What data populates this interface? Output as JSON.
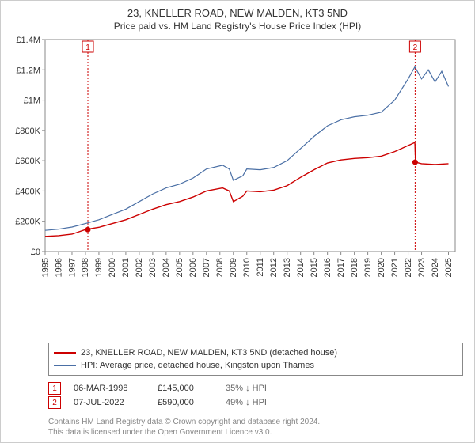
{
  "title_line1": "23, KNELLER ROAD, NEW MALDEN, KT3 5ND",
  "title_line2": "Price paid vs. HM Land Registry's House Price Index (HPI)",
  "chart": {
    "type": "line",
    "background_color": "#ffffff",
    "grid_on": false,
    "plot_border_color": "#888888",
    "x": {
      "min": 1995,
      "max": 2025.5,
      "ticks": [
        1995,
        1996,
        1997,
        1998,
        1999,
        2000,
        2001,
        2002,
        2003,
        2004,
        2005,
        2006,
        2007,
        2008,
        2009,
        2010,
        2011,
        2012,
        2013,
        2014,
        2015,
        2016,
        2017,
        2018,
        2019,
        2020,
        2021,
        2022,
        2023,
        2024,
        2025
      ],
      "label_fontsize": 11,
      "label_rotation": -90
    },
    "y": {
      "min": 0,
      "max": 1400000,
      "ticks": [
        0,
        200000,
        400000,
        600000,
        800000,
        1000000,
        1200000,
        1400000
      ],
      "tick_labels": [
        "£0",
        "£200K",
        "£400K",
        "£600K",
        "£800K",
        "£1M",
        "£1.2M",
        "£1.4M"
      ],
      "label_fontsize": 11
    },
    "series": [
      {
        "name": "property",
        "color": "#cc0000",
        "line_width": 1.4,
        "points": [
          [
            1995,
            100000
          ],
          [
            1996,
            105000
          ],
          [
            1997,
            115000
          ],
          [
            1998,
            145000
          ],
          [
            1999,
            160000
          ],
          [
            2000,
            185000
          ],
          [
            2001,
            210000
          ],
          [
            2002,
            245000
          ],
          [
            2003,
            280000
          ],
          [
            2004,
            310000
          ],
          [
            2005,
            330000
          ],
          [
            2006,
            360000
          ],
          [
            2007,
            400000
          ],
          [
            2008.2,
            420000
          ],
          [
            2008.7,
            400000
          ],
          [
            2009,
            330000
          ],
          [
            2009.7,
            365000
          ],
          [
            2010,
            400000
          ],
          [
            2011,
            395000
          ],
          [
            2012,
            405000
          ],
          [
            2013,
            435000
          ],
          [
            2014,
            490000
          ],
          [
            2015,
            540000
          ],
          [
            2016,
            585000
          ],
          [
            2017,
            605000
          ],
          [
            2018,
            615000
          ],
          [
            2019,
            620000
          ],
          [
            2020,
            630000
          ],
          [
            2021,
            660000
          ],
          [
            2022,
            700000
          ],
          [
            2022.5,
            720000
          ],
          [
            2022.55,
            590000
          ],
          [
            2023,
            580000
          ],
          [
            2024,
            575000
          ],
          [
            2025,
            580000
          ]
        ]
      },
      {
        "name": "hpi",
        "color": "#4a6fa5",
        "line_width": 1.2,
        "points": [
          [
            1995,
            140000
          ],
          [
            1996,
            148000
          ],
          [
            1997,
            162000
          ],
          [
            1998,
            185000
          ],
          [
            1999,
            210000
          ],
          [
            2000,
            245000
          ],
          [
            2001,
            280000
          ],
          [
            2002,
            330000
          ],
          [
            2003,
            380000
          ],
          [
            2004,
            420000
          ],
          [
            2005,
            445000
          ],
          [
            2006,
            485000
          ],
          [
            2007,
            545000
          ],
          [
            2008.2,
            570000
          ],
          [
            2008.7,
            545000
          ],
          [
            2009,
            470000
          ],
          [
            2009.7,
            500000
          ],
          [
            2010,
            545000
          ],
          [
            2011,
            540000
          ],
          [
            2012,
            555000
          ],
          [
            2013,
            600000
          ],
          [
            2014,
            680000
          ],
          [
            2015,
            760000
          ],
          [
            2016,
            830000
          ],
          [
            2017,
            870000
          ],
          [
            2018,
            890000
          ],
          [
            2019,
            900000
          ],
          [
            2020,
            920000
          ],
          [
            2021,
            1000000
          ],
          [
            2022,
            1140000
          ],
          [
            2022.5,
            1220000
          ],
          [
            2023,
            1140000
          ],
          [
            2023.5,
            1200000
          ],
          [
            2024,
            1120000
          ],
          [
            2024.5,
            1190000
          ],
          [
            2025,
            1090000
          ]
        ]
      }
    ],
    "event_markers": [
      {
        "id": "1",
        "x": 1998.18,
        "y": 145000,
        "line_color": "#cc0000",
        "point_color": "#cc0000",
        "badge_color": "#cc0000"
      },
      {
        "id": "2",
        "x": 2022.52,
        "y": 590000,
        "line_color": "#cc0000",
        "point_color": "#cc0000",
        "badge_color": "#cc0000"
      }
    ]
  },
  "legend": {
    "items": [
      {
        "color": "#cc0000",
        "label": "23, KNELLER ROAD, NEW MALDEN, KT3 5ND (detached house)"
      },
      {
        "color": "#4a6fa5",
        "label": "HPI: Average price, detached house, Kingston upon Thames"
      }
    ],
    "fontsize": 11,
    "border_color": "#888888"
  },
  "events_table": [
    {
      "id": "1",
      "date": "06-MAR-1998",
      "price": "£145,000",
      "pct": "35%",
      "arrow": "↓",
      "suffix": "HPI"
    },
    {
      "id": "2",
      "date": "07-JUL-2022",
      "price": "£590,000",
      "pct": "49%",
      "arrow": "↓",
      "suffix": "HPI"
    }
  ],
  "footer_line1": "Contains HM Land Registry data © Crown copyright and database right 2024.",
  "footer_line2": "This data is licensed under the Open Government Licence v3.0."
}
